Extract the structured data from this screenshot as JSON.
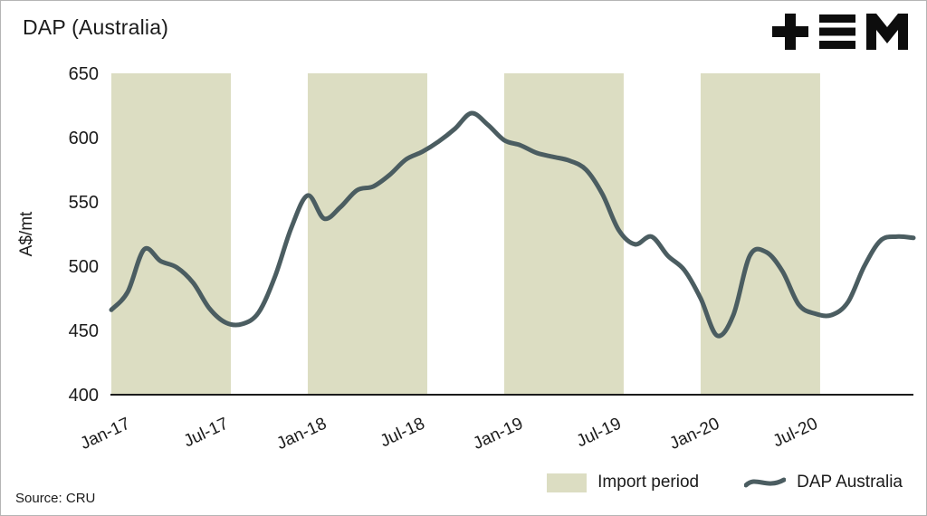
{
  "header": {
    "title": "DAP (Australia)",
    "logo_name": "tem-logo"
  },
  "source": "Source: CRU",
  "legend": {
    "import_label": "Import period",
    "series_label": "DAP Australia"
  },
  "colors": {
    "band": "#dcddc2",
    "line": "#4b5d61",
    "text": "#1b1b1b",
    "axis": "#1b1b1b",
    "logo": "#0d0d0d"
  },
  "chart_data": {
    "type": "line",
    "title": "DAP (Australia)",
    "ylabel": "A$/mt",
    "ylim": [
      400,
      650
    ],
    "yticks": [
      400,
      450,
      500,
      550,
      600,
      650
    ],
    "grid": false,
    "legend_position": "bottom-right",
    "x_start": "Jan-17",
    "x_frequency": "monthly",
    "x_domain_months": [
      0,
      49
    ],
    "xticks": [
      {
        "label": "Jan-17",
        "month": 0
      },
      {
        "label": "Jul-17",
        "month": 6
      },
      {
        "label": "Jan-18",
        "month": 12
      },
      {
        "label": "Jul-18",
        "month": 18
      },
      {
        "label": "Jan-19",
        "month": 24
      },
      {
        "label": "Jul-19",
        "month": 30
      },
      {
        "label": "Jan-20",
        "month": 36
      },
      {
        "label": "Jul-20",
        "month": 42
      }
    ],
    "import_period_bands_months": [
      [
        0,
        7.3
      ],
      [
        12,
        19.3
      ],
      [
        24,
        31.3
      ],
      [
        36,
        43.3
      ]
    ],
    "series": [
      {
        "name": "DAP Australia",
        "values": [
          466,
          480,
          513,
          504,
          499,
          487,
          467,
          456,
          455,
          464,
          492,
          530,
          555,
          537,
          546,
          559,
          562,
          571,
          583,
          589,
          597,
          607,
          619,
          610,
          598,
          594,
          588,
          585,
          582,
          575,
          556,
          528,
          517,
          523,
          508,
          497,
          475,
          446,
          462,
          508,
          511,
          496,
          470,
          463,
          462,
          472,
          500,
          520,
          523,
          522
        ]
      }
    ]
  }
}
